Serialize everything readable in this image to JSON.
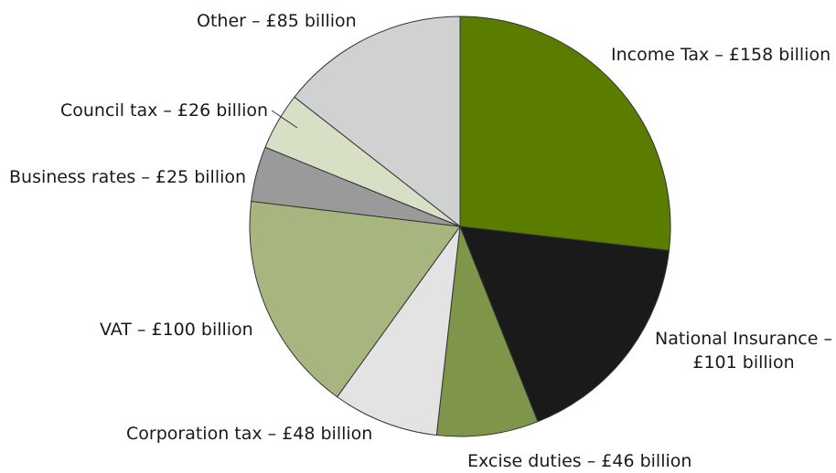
{
  "chart_data": {
    "type": "pie",
    "slices": [
      {
        "label": "Income Tax – £158 billion",
        "name": "Income Tax",
        "value": 158,
        "color": "#5a7d00"
      },
      {
        "label": "National Insurance – £101 billion",
        "name": "National Insurance",
        "value": 101,
        "color": "#1a1a1a"
      },
      {
        "label": "Excise duties – £46 billion",
        "name": "Excise duties",
        "value": 46,
        "color": "#7f964a"
      },
      {
        "label": "Corporation tax – £48 billion",
        "name": "Corporation tax",
        "value": 48,
        "color": "#e3e3e3"
      },
      {
        "label": "VAT – £100 billion",
        "name": "VAT",
        "value": 100,
        "color": "#a7b57f"
      },
      {
        "label": "Business rates – £25 billion",
        "name": "Business rates",
        "value": 25,
        "color": "#9a9a9a"
      },
      {
        "label": "Council tax – £26 billion",
        "name": "Council tax",
        "value": 26,
        "color": "#d7dfc4"
      },
      {
        "label": "Other – £85 billion",
        "name": "Other",
        "value": 85,
        "color": "#d0d2d1"
      }
    ],
    "legend": "none",
    "start": "top",
    "direction": "clockwise"
  }
}
